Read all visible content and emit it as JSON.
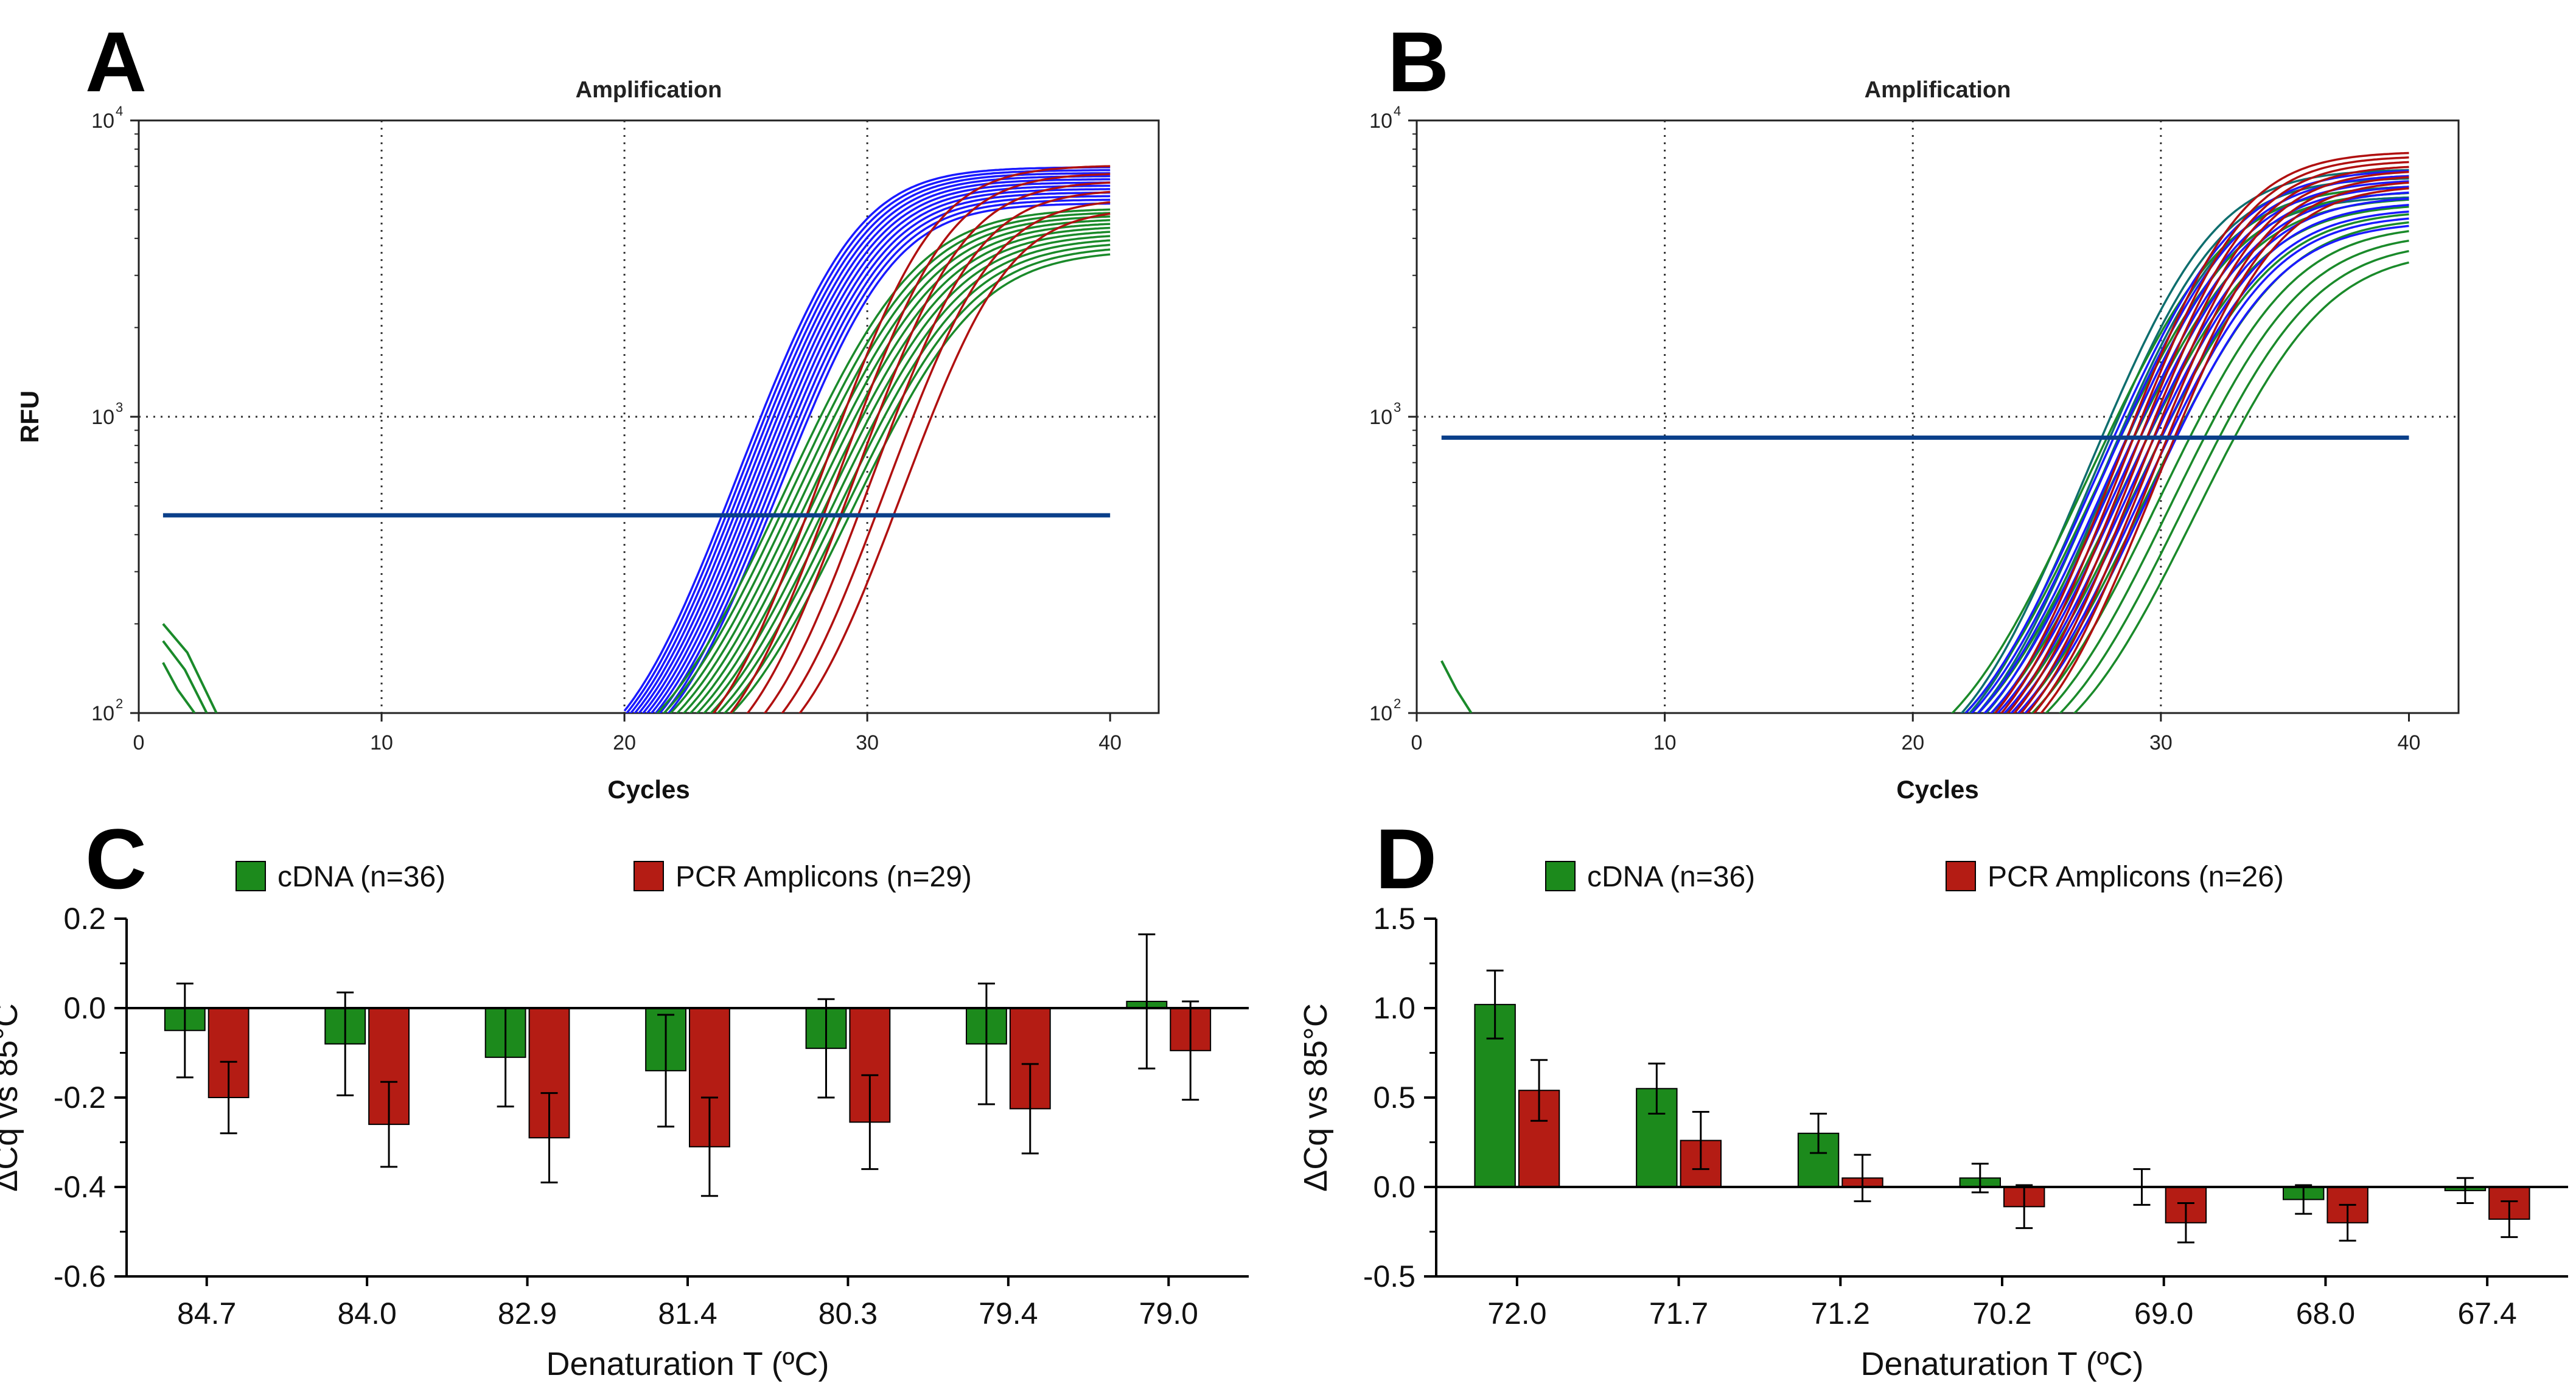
{
  "figure": {
    "panel_labels": [
      "A",
      "B",
      "C",
      "D"
    ]
  },
  "chart_data": [
    {
      "panel": "A",
      "type": "line",
      "title": "Amplification",
      "xlabel": "Cycles",
      "ylabel": "RFU",
      "xlim": [
        0,
        42
      ],
      "ylim_log10": [
        2,
        4
      ],
      "x_ticks": [
        "0",
        "10",
        "20",
        "30",
        "40"
      ],
      "y_ticks": [
        {
          "base": "10",
          "exp": "2"
        },
        {
          "base": "10",
          "exp": "3"
        },
        {
          "base": "10",
          "exp": "4"
        }
      ],
      "threshold": 465,
      "threshold_x_range": [
        1,
        40
      ],
      "gridlines": {
        "x": [
          10,
          20,
          30
        ],
        "y": [
          1000
        ]
      },
      "series_groups": [
        {
          "name": "blue",
          "color": "#1a1aff",
          "n": 12,
          "xmid_range": [
            28.8,
            30.2
          ],
          "plateau_range": [
            5200,
            6900
          ],
          "k": 0.58
        },
        {
          "name": "green",
          "color": "#1a8a2a",
          "n": 12,
          "xmid_range": [
            31.0,
            33.4
          ],
          "plateau_range": [
            3600,
            5000
          ],
          "k": 0.5
        },
        {
          "name": "red",
          "color": "#b01010",
          "n": 6,
          "xmid_range": [
            32.0,
            35.0
          ],
          "plateau_range": [
            5000,
            7000
          ],
          "k": 0.62
        }
      ],
      "noise_curves": [
        {
          "color": "#1a8a2a",
          "points": [
            [
              1.0,
              200
            ],
            [
              2.0,
              160
            ],
            [
              3.2,
              100
            ]
          ]
        },
        {
          "color": "#1a8a2a",
          "points": [
            [
              1.0,
              175
            ],
            [
              1.9,
              140
            ],
            [
              2.8,
              100
            ]
          ]
        },
        {
          "color": "#1a8a2a",
          "points": [
            [
              1.0,
              148
            ],
            [
              1.6,
              120
            ],
            [
              2.3,
              100
            ]
          ]
        }
      ]
    },
    {
      "panel": "B",
      "type": "line",
      "title": "Amplification",
      "xlabel": "Cycles",
      "ylabel": "",
      "xlim": [
        0,
        42
      ],
      "ylim_log10": [
        2,
        4
      ],
      "x_ticks": [
        "0",
        "10",
        "20",
        "30",
        "40"
      ],
      "y_ticks": [
        {
          "base": "10",
          "exp": "2"
        },
        {
          "base": "10",
          "exp": "3"
        },
        {
          "base": "10",
          "exp": "4"
        }
      ],
      "threshold": 850,
      "threshold_x_range": [
        1,
        40
      ],
      "gridlines": {
        "x": [
          10,
          20,
          30
        ],
        "y": [
          1000
        ]
      },
      "series_groups": [
        {
          "name": "teal",
          "color": "#0e6e6e",
          "n": 4,
          "xmid_range": [
            31.3,
            31.9
          ],
          "plateau_range": [
            5500,
            6800
          ],
          "k": 0.55
        },
        {
          "name": "green",
          "color": "#1a8a2a",
          "n": 10,
          "xmid_range": [
            31.6,
            35.5
          ],
          "plateau_range": [
            3600,
            6000
          ],
          "k": 0.5
        },
        {
          "name": "blue",
          "color": "#1a1aff",
          "n": 10,
          "xmid_range": [
            32.0,
            33.6
          ],
          "plateau_range": [
            4500,
            6800
          ],
          "k": 0.52
        },
        {
          "name": "red",
          "color": "#b01010",
          "n": 8,
          "xmid_range": [
            32.4,
            33.8
          ],
          "plateau_range": [
            6000,
            7800
          ],
          "k": 0.58
        }
      ],
      "noise_curves": [
        {
          "color": "#1a8a2a",
          "points": [
            [
              1.0,
              150
            ],
            [
              1.6,
              120
            ],
            [
              2.2,
              100
            ]
          ]
        }
      ]
    },
    {
      "panel": "C",
      "type": "bar",
      "xlabel": "Denaturation T (ºC)",
      "ylabel": "ΔCq vs 85°C",
      "ylim": [
        -0.6,
        0.2
      ],
      "y_ticks": [
        "0.2",
        "0.0",
        "-0.2",
        "-0.4",
        "-0.6"
      ],
      "categories": [
        "84.7",
        "84.0",
        "82.9",
        "81.4",
        "80.3",
        "79.4",
        "79.0"
      ],
      "series": [
        {
          "name": "cDNA (n=36)",
          "color": "#1c8a1c",
          "values": [
            -0.05,
            -0.08,
            -0.11,
            -0.14,
            -0.09,
            -0.08,
            0.015
          ],
          "errors": [
            0.105,
            0.115,
            0.11,
            0.125,
            0.11,
            0.135,
            0.15
          ]
        },
        {
          "name": "PCR Amplicons (n=29)",
          "color": "#b41c14",
          "values": [
            -0.2,
            -0.26,
            -0.29,
            -0.31,
            -0.255,
            -0.225,
            -0.095
          ],
          "errors": [
            0.08,
            0.095,
            0.1,
            0.11,
            0.105,
            0.1,
            0.11
          ]
        }
      ]
    },
    {
      "panel": "D",
      "type": "bar",
      "xlabel": "Denaturation T (ºC)",
      "ylabel": "ΔCq vs 85°C",
      "ylim": [
        -0.5,
        1.5
      ],
      "y_ticks": [
        "1.5",
        "1.0",
        "0.5",
        "0.0",
        "-0.5"
      ],
      "categories": [
        "72.0",
        "71.7",
        "71.2",
        "70.2",
        "69.0",
        "68.0",
        "67.4"
      ],
      "series": [
        {
          "name": "cDNA (n=36)",
          "color": "#1c8a1c",
          "values": [
            1.02,
            0.55,
            0.3,
            0.05,
            0.0,
            -0.07,
            -0.02
          ],
          "errors": [
            0.19,
            0.14,
            0.11,
            0.08,
            0.1,
            0.08,
            0.07
          ]
        },
        {
          "name": "PCR Amplicons (n=26)",
          "color": "#b41c14",
          "values": [
            0.54,
            0.26,
            0.05,
            -0.11,
            -0.2,
            -0.2,
            -0.18
          ],
          "errors": [
            0.17,
            0.16,
            0.13,
            0.12,
            0.11,
            0.1,
            0.1
          ]
        }
      ]
    }
  ]
}
